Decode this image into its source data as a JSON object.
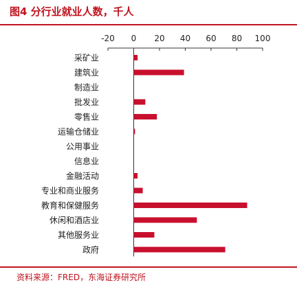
{
  "title": "图4  分行业就业人数，千人",
  "source": "资料来源：FRED，东海证券研究所",
  "colors": {
    "accent": "#c0141f",
    "bar": "#c8102e",
    "axis": "#333333"
  },
  "chart_data": {
    "type": "bar",
    "orientation": "horizontal",
    "categories": [
      "采矿业",
      "建筑业",
      "制造业",
      "批发业",
      "零售业",
      "运输仓储业",
      "公用事业",
      "信息业",
      "金融活动",
      "专业和商业服务",
      "教育和保健服务",
      "休闲和酒店业",
      "其他服务业",
      "政府"
    ],
    "values": [
      3,
      39,
      0,
      9,
      18,
      1,
      0,
      0,
      3,
      7,
      88,
      49,
      16,
      71
    ],
    "xlim": [
      -20,
      100
    ],
    "xticks": [
      -20,
      0,
      20,
      40,
      60,
      80,
      100
    ],
    "x_axis_position": "top",
    "grid": false,
    "legend": "none",
    "xlabel": "",
    "ylabel": ""
  }
}
